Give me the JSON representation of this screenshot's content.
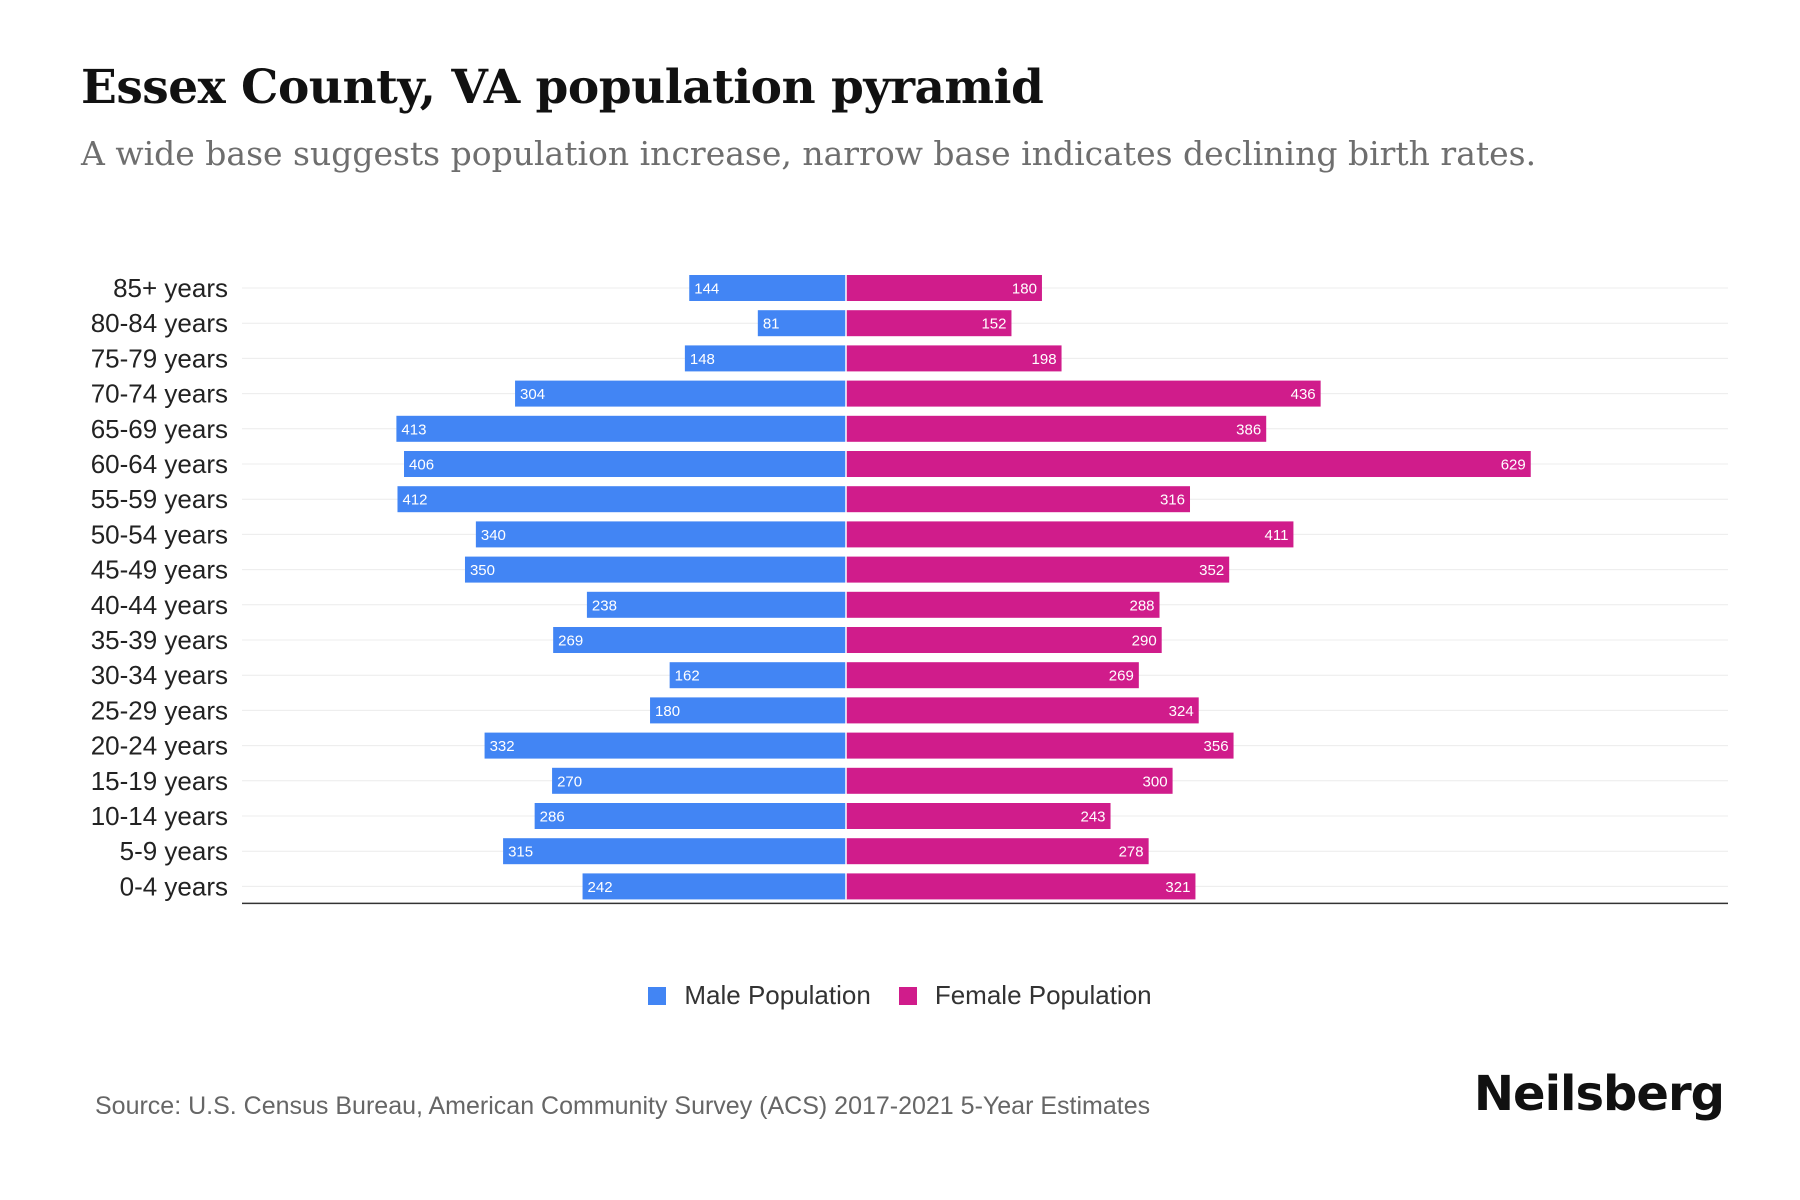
{
  "header": {
    "title": "Essex County, VA population pyramid",
    "subtitle": "A wide base suggests population increase, narrow base indicates declining birth rates."
  },
  "footer": {
    "source": "Source: U.S. Census Bureau, American Community Survey (ACS) 2017-2021 5-Year Estimates",
    "brand": "Neilsberg"
  },
  "colors": {
    "male": "#4285F4",
    "female": "#D01C8B"
  },
  "chart_data": {
    "type": "bar",
    "orientation": "horizontal-diverging",
    "title": "Essex County, VA population pyramid",
    "categories": [
      "85+ years",
      "80-84 years",
      "75-79 years",
      "70-74 years",
      "65-69 years",
      "60-64 years",
      "55-59 years",
      "50-54 years",
      "45-49 years",
      "40-44 years",
      "35-39 years",
      "30-34 years",
      "25-29 years",
      "20-24 years",
      "15-19 years",
      "10-14 years",
      "5-9 years",
      "0-4 years"
    ],
    "series": [
      {
        "name": "Male Population",
        "values": [
          144,
          81,
          148,
          304,
          413,
          406,
          412,
          340,
          350,
          238,
          269,
          162,
          180,
          332,
          270,
          286,
          315,
          242
        ]
      },
      {
        "name": "Female Population",
        "values": [
          180,
          152,
          198,
          436,
          386,
          629,
          316,
          411,
          352,
          288,
          290,
          269,
          324,
          356,
          300,
          243,
          278,
          321
        ]
      }
    ],
    "xlim": [
      -470,
      690
    ],
    "legend_position": "bottom-center",
    "grid": true
  }
}
